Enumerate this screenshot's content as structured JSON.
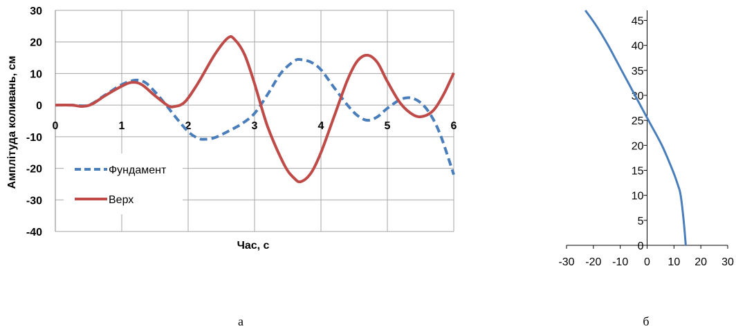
{
  "captions": {
    "a": "а",
    "b": "б"
  },
  "chart_data": [
    {
      "type": "line",
      "title": "",
      "xlabel": "Час, с",
      "ylabel": "Амплітуда коливань, см",
      "xlim": [
        0,
        6
      ],
      "ylim": [
        -40,
        30
      ],
      "x_ticks": [
        "0",
        "1",
        "2",
        "3",
        "4",
        "5",
        "6"
      ],
      "y_ticks": [
        "30",
        "20",
        "10",
        "0",
        "-10",
        "-20",
        "-30",
        "-40"
      ],
      "grid": true,
      "legend_position": "lower-left",
      "series": [
        {
          "name": "Фундамент",
          "color": "#4a7ebb",
          "dash": "dashed",
          "points": [
            [
              0,
              0
            ],
            [
              0.25,
              0
            ],
            [
              0.5,
              0
            ],
            [
              0.75,
              3.2
            ],
            [
              1.0,
              6.5
            ],
            [
              1.2,
              7.9
            ],
            [
              1.35,
              7.2
            ],
            [
              1.5,
              4.2
            ],
            [
              1.65,
              0.5
            ],
            [
              1.8,
              -3.5
            ],
            [
              2.0,
              -8.4
            ],
            [
              2.15,
              -10.5
            ],
            [
              2.25,
              -10.8
            ],
            [
              2.4,
              -10.3
            ],
            [
              2.6,
              -8.3
            ],
            [
              2.8,
              -6.0
            ],
            [
              3.0,
              -2.6
            ],
            [
              3.2,
              3.5
            ],
            [
              3.4,
              10.2
            ],
            [
              3.6,
              14.0
            ],
            [
              3.7,
              14.4
            ],
            [
              3.85,
              13.6
            ],
            [
              4.0,
              11.2
            ],
            [
              4.2,
              5.5
            ],
            [
              4.4,
              0.0
            ],
            [
              4.55,
              -3.3
            ],
            [
              4.7,
              -4.8
            ],
            [
              4.85,
              -3.7
            ],
            [
              5.0,
              -1.0
            ],
            [
              5.2,
              1.8
            ],
            [
              5.35,
              2.3
            ],
            [
              5.5,
              0.8
            ],
            [
              5.65,
              -3.0
            ],
            [
              5.8,
              -9.5
            ],
            [
              6.0,
              -22
            ]
          ]
        },
        {
          "name": "Верх",
          "color": "#be4b48",
          "dash": "solid",
          "points": [
            [
              0,
              0
            ],
            [
              0.25,
              0
            ],
            [
              0.4,
              -0.4
            ],
            [
              0.55,
              0.3
            ],
            [
              0.75,
              3.0
            ],
            [
              1.0,
              6.0
            ],
            [
              1.15,
              7.2
            ],
            [
              1.3,
              6.5
            ],
            [
              1.5,
              3.0
            ],
            [
              1.7,
              -0.2
            ],
            [
              1.8,
              -0.4
            ],
            [
              1.95,
              1.0
            ],
            [
              2.15,
              7.0
            ],
            [
              2.4,
              16.0
            ],
            [
              2.6,
              21.3
            ],
            [
              2.7,
              20.8
            ],
            [
              2.85,
              16.0
            ],
            [
              3.0,
              6.8
            ],
            [
              3.2,
              -7.0
            ],
            [
              3.45,
              -19.0
            ],
            [
              3.6,
              -23.2
            ],
            [
              3.7,
              -24.2
            ],
            [
              3.85,
              -21.5
            ],
            [
              4.0,
              -15.0
            ],
            [
              4.2,
              -3.5
            ],
            [
              4.4,
              8.0
            ],
            [
              4.55,
              14.0
            ],
            [
              4.7,
              15.8
            ],
            [
              4.85,
              13.5
            ],
            [
              5.0,
              7.5
            ],
            [
              5.2,
              0.5
            ],
            [
              5.4,
              -3.2
            ],
            [
              5.55,
              -3.5
            ],
            [
              5.7,
              -1.5
            ],
            [
              5.85,
              3.5
            ],
            [
              6.0,
              10.2
            ]
          ]
        }
      ]
    },
    {
      "type": "line",
      "title": "",
      "xlabel": "",
      "ylabel": "",
      "xlim": [
        -30,
        30
      ],
      "ylim": [
        0,
        47
      ],
      "x_ticks": [
        "-30",
        "-20",
        "-10",
        "0",
        "10",
        "20",
        "30"
      ],
      "y_ticks": [
        "0",
        "5",
        "10",
        "15",
        "20",
        "25",
        "30",
        "35",
        "40",
        "45"
      ],
      "grid": false,
      "series": [
        {
          "color": "#4a7ebb",
          "dash": "solid",
          "points": [
            [
              14.4,
              0
            ],
            [
              13.6,
              5
            ],
            [
              12.5,
              10
            ],
            [
              11.5,
              12
            ],
            [
              9.5,
              15
            ],
            [
              5.5,
              20
            ],
            [
              0.5,
              25
            ],
            [
              -4.5,
              30
            ],
            [
              -9.5,
              35
            ],
            [
              -14.5,
              40
            ],
            [
              -19.0,
              44
            ],
            [
              -23.0,
              47
            ]
          ]
        }
      ]
    }
  ]
}
